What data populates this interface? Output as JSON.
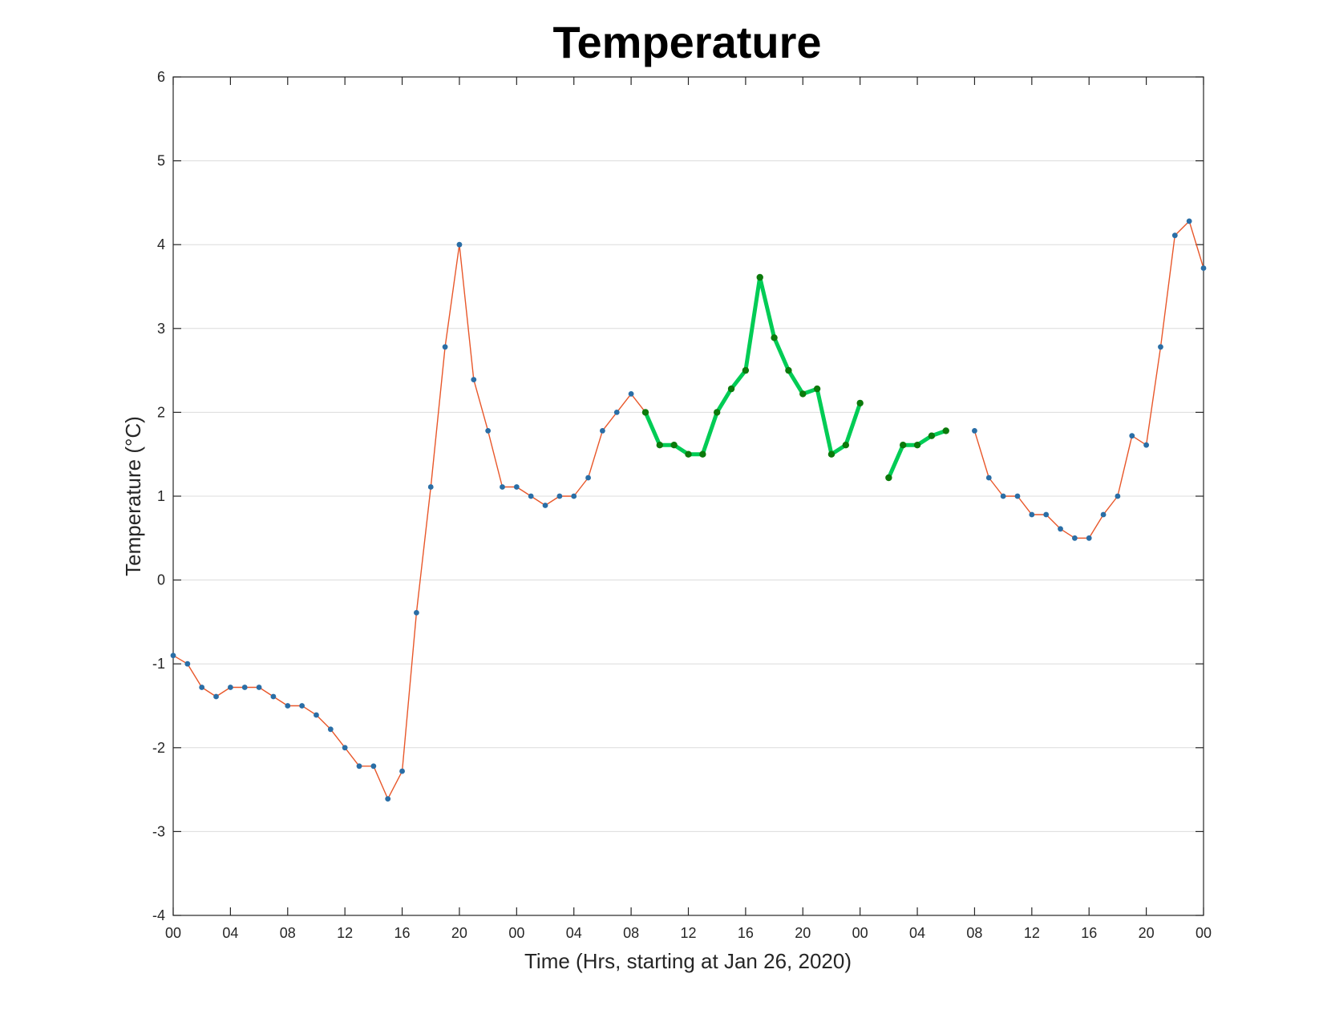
{
  "chart_data": {
    "type": "line",
    "title": "Temperature",
    "xlabel": "Time (Hrs, starting at Jan 26, 2020)",
    "ylabel": "Temperature (°C)",
    "xlim": [
      0,
      72
    ],
    "ylim": [
      -4,
      6
    ],
    "grid": "y-only",
    "x_tick_values": [
      0,
      4,
      8,
      12,
      16,
      20,
      24,
      28,
      32,
      36,
      40,
      44,
      48,
      52,
      56,
      60,
      64,
      68,
      72
    ],
    "x_tick_labels": [
      "00",
      "04",
      "08",
      "12",
      "16",
      "20",
      "00",
      "04",
      "08",
      "12",
      "16",
      "20",
      "00",
      "04",
      "08",
      "12",
      "16",
      "20",
      "00"
    ],
    "y_ticks": [
      -4,
      -3,
      -2,
      -1,
      0,
      1,
      2,
      3,
      4,
      5,
      6
    ],
    "series": [
      {
        "style": "thin-line-with-markers",
        "line_color": "#e8572a",
        "marker_color": "#2a6ea6",
        "segments": [
          {
            "x": [
              0,
              1,
              2,
              3,
              4,
              5,
              6,
              7,
              8,
              9,
              10,
              11,
              12,
              13,
              14,
              15,
              16,
              17,
              18,
              19,
              20,
              21,
              22,
              23,
              24,
              25,
              26,
              27,
              28,
              29,
              30,
              31,
              32,
              33
            ],
            "y": [
              -0.9,
              -1.0,
              -1.28,
              -1.39,
              -1.28,
              -1.28,
              -1.28,
              -1.39,
              -1.5,
              -1.5,
              -1.61,
              -1.78,
              -2.0,
              -2.22,
              -2.22,
              -2.61,
              -2.28,
              -0.39,
              1.11,
              2.78,
              4.0,
              2.39,
              1.78,
              1.11,
              1.11,
              1.0,
              0.89,
              1.0,
              1.0,
              1.22,
              1.78,
              2.0,
              2.22,
              2.0
            ]
          },
          {
            "x": [
              56,
              57,
              58,
              59,
              60,
              61,
              62,
              63,
              64,
              65,
              66,
              67,
              68,
              69,
              70,
              71,
              72
            ],
            "y": [
              1.78,
              1.22,
              1.0,
              1.0,
              0.78,
              0.78,
              0.61,
              0.5,
              0.5,
              0.78,
              1.0,
              1.72,
              1.61,
              2.78,
              4.11,
              4.28,
              3.72
            ]
          }
        ]
      },
      {
        "style": "thick-line-with-markers",
        "line_color": "#00cc55",
        "marker_color": "#0b7a0b",
        "segments": [
          {
            "x": [
              33,
              34,
              35,
              36,
              37,
              38,
              39,
              40,
              41,
              42,
              43,
              44,
              45,
              46,
              47,
              48
            ],
            "y": [
              2.0,
              1.61,
              1.61,
              1.5,
              1.5,
              2.0,
              2.28,
              2.5,
              3.61,
              2.89,
              2.5,
              2.22,
              2.28,
              1.5,
              1.61,
              2.11
            ]
          },
          {
            "x": [
              50,
              51,
              52,
              53,
              54
            ],
            "y": [
              1.22,
              1.61,
              1.61,
              1.72,
              1.78
            ]
          }
        ]
      }
    ]
  }
}
